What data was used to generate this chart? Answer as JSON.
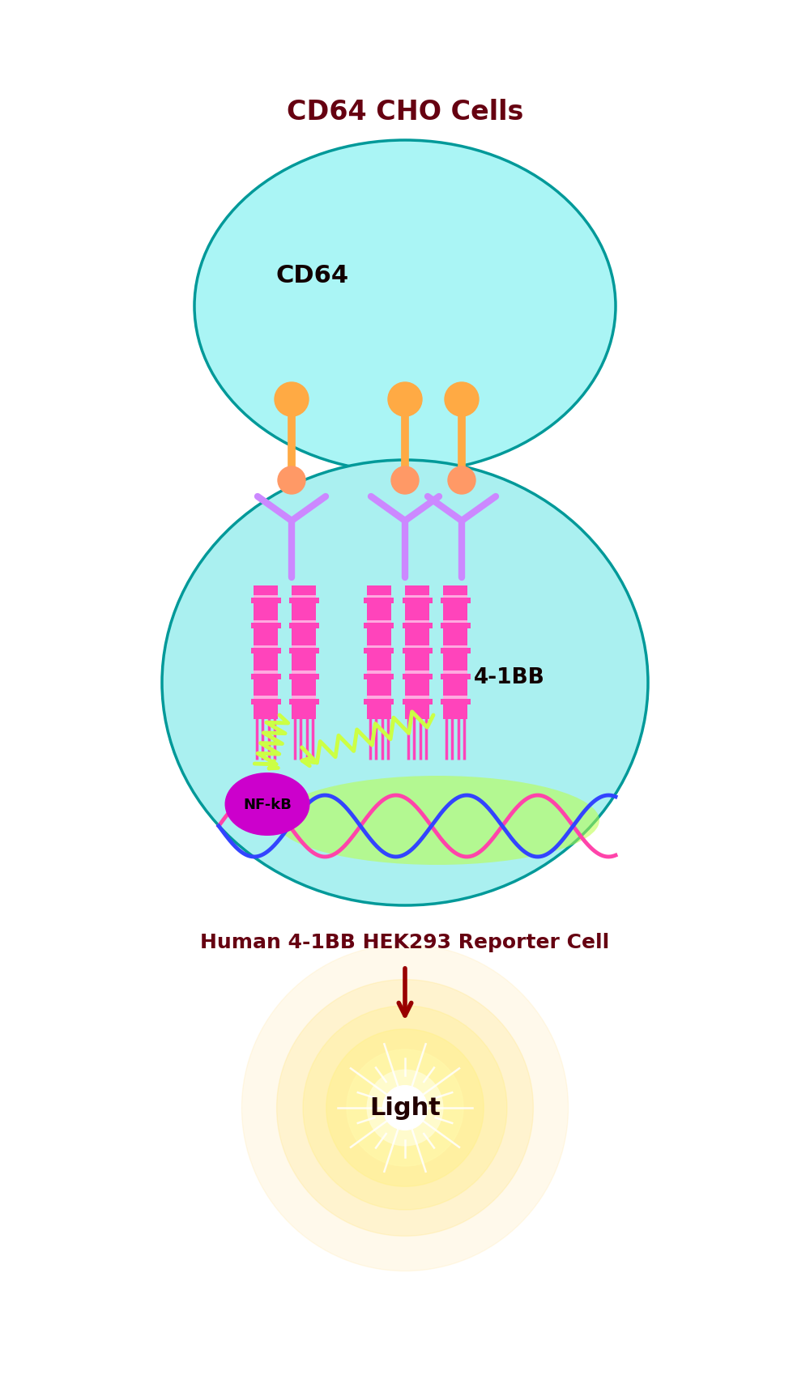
{
  "title_cho": "CD64 CHO Cells",
  "title_hek": "Human 4-1BB HEK293 Reporter Cell",
  "label_cd64": "CD64",
  "label_41bb": "4-1BB",
  "label_nfkb": "NF-kB",
  "label_light": "Light",
  "bg_color": "#ffffff",
  "cho_cell_color_light": "#aaf5f5",
  "cho_cell_color_dark": "#00d8d8",
  "hek_cell_color_light": "#aaf0f0",
  "hek_cell_color_dark": "#00cccc",
  "cell_border_color": "#009999",
  "receptor_stem_color": "#cc88ff",
  "receptor_head_color_top": "#ffaa44",
  "receptor_head_color_bottom": "#ff9966",
  "transmembrane_color": "#ff44bb",
  "signal_color": "#ccff44",
  "nfkb_color": "#cc00cc",
  "dna_color1": "#ff44aa",
  "dna_color2": "#3344ff",
  "dna_glow_color": "#bbff44",
  "light_color_inner": "#ffffff",
  "light_color_mid": "#ffee88",
  "light_color_outer": "#ffcc44",
  "arrow_color": "#990000",
  "title_color": "#660011",
  "label_color": "#110000"
}
